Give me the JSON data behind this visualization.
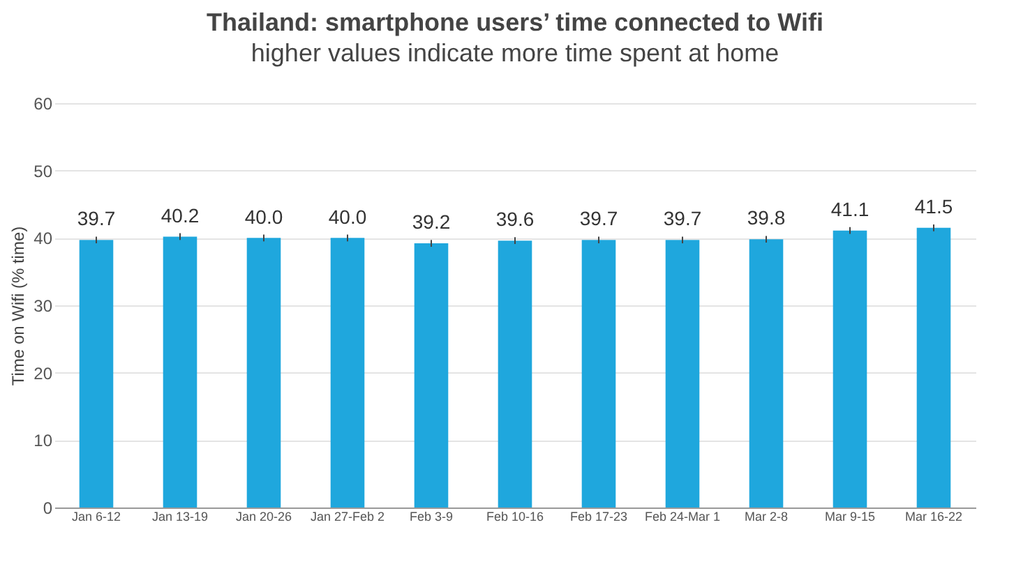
{
  "chart_data": {
    "type": "bar",
    "title": "Thailand: smartphone users’ time connected to Wifi",
    "subtitle": "higher values indicate more time spent at home",
    "ylabel": "Time on Wifi (% time)",
    "categories": [
      "Jan 6-12",
      "Jan 13-19",
      "Jan 20-26",
      "Jan 27-Feb 2",
      "Feb 3-9",
      "Feb 10-16",
      "Feb 17-23",
      "Feb 24-Mar 1",
      "Mar 2-8",
      "Mar 9-15",
      "Mar 16-22"
    ],
    "values": [
      39.7,
      40.2,
      40.0,
      40.0,
      39.2,
      39.6,
      39.7,
      39.7,
      39.8,
      41.1,
      41.5
    ],
    "errors": [
      0.5,
      0.5,
      0.5,
      0.5,
      0.5,
      0.5,
      0.5,
      0.5,
      0.5,
      0.5,
      0.5
    ],
    "value_labels": [
      "39.7",
      "40.2",
      "40.0",
      "40.0",
      "39.2",
      "39.6",
      "39.7",
      "39.7",
      "39.8",
      "41.1",
      "41.5"
    ],
    "color": "#1fa7dd",
    "ylim": [
      0,
      60
    ],
    "yticks": [
      0,
      10,
      20,
      30,
      40,
      50,
      60
    ],
    "grid": "y"
  }
}
